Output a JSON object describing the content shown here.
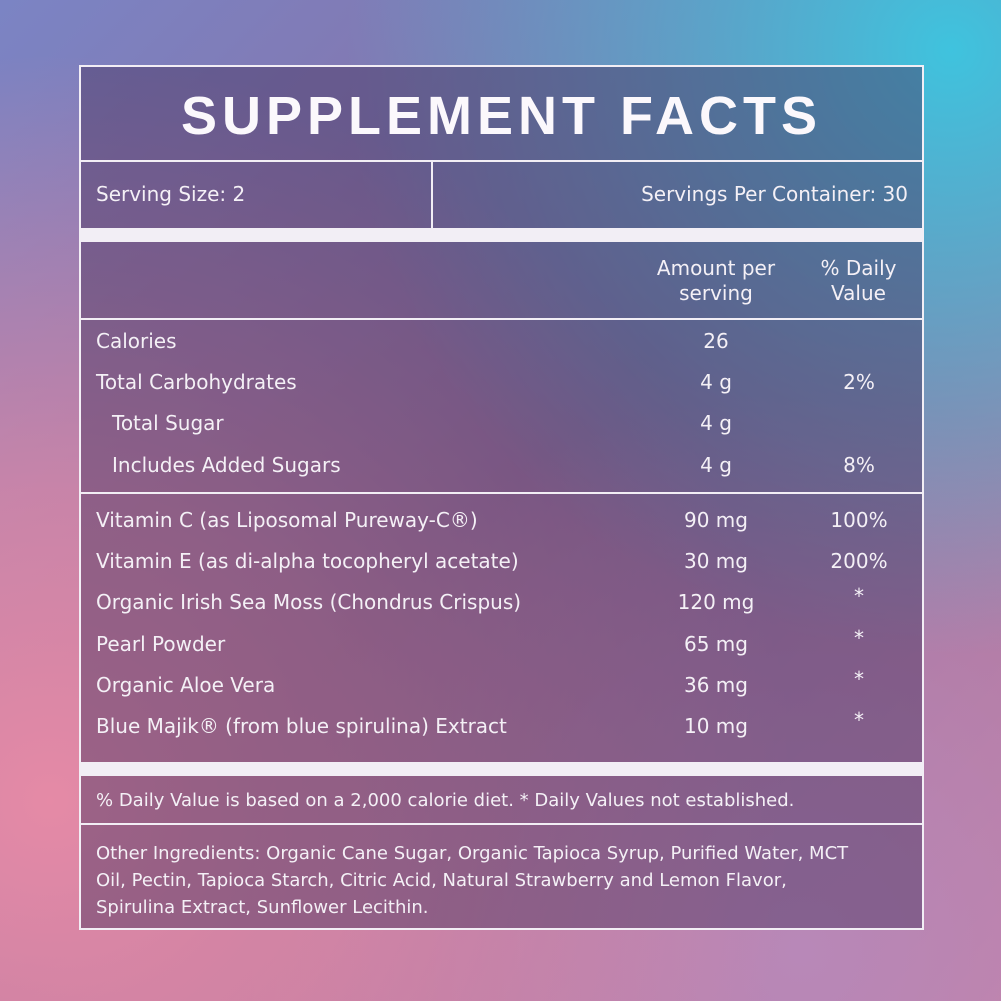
{
  "title": "SUPPLEMENT FACTS",
  "serving_size": "Serving Size: 2",
  "servings_per_container": "Servings Per Container: 30",
  "columns": {
    "amount": "Amount per serving",
    "daily_value": "% Daily Value"
  },
  "groups": [
    {
      "rows": [
        {
          "name": "Calories",
          "amount": "26"
        },
        {
          "name": "Total Carbohydrates",
          "amount": "4 g",
          "daily_value": "2%"
        },
        {
          "name": "Total Sugar",
          "amount": "4 g",
          "level": 1
        },
        {
          "name": "Includes Added Sugars",
          "amount": "4 g",
          "daily_value": "8%",
          "level": 1
        }
      ]
    },
    {
      "rows": [
        {
          "name": "Vitamin C (as Liposomal Pureway-C®)",
          "amount": "90 mg",
          "daily_value": "100%"
        },
        {
          "name": "Vitamin E (as di-alpha tocopheryl acetate)",
          "amount": "30 mg",
          "daily_value": "200%"
        },
        {
          "name": "Organic Irish Sea Moss (Chondrus Crispus)",
          "amount": "120 mg",
          "daily_value": "*"
        },
        {
          "name": "Pearl Powder",
          "amount": "65 mg",
          "daily_value": "*"
        },
        {
          "name": "Organic Aloe Vera",
          "amount": "36 mg",
          "daily_value": "*"
        },
        {
          "name": "Blue Majik® (from blue spirulina) Extract",
          "amount": "10 mg",
          "daily_value": "*"
        }
      ]
    }
  ],
  "footnote": "% Daily Value is based on a 2,000 calorie diet. * Daily Values not established.",
  "other_ingredients": "Other Ingredients: Organic Cane Sugar, Organic Tapioca Syrup, Purified Water, MCT Oil, Pectin, Tapioca Starch, Citric Acid, Natural Strawberry and Lemon Flavor, Spirulina Extract, Sunflower Lecithin."
}
